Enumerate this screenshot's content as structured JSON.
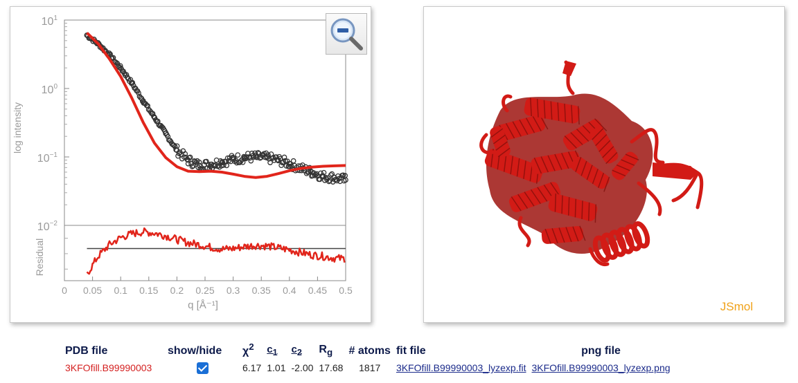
{
  "plot": {
    "ylabel": "log intensity",
    "residual_label": "Residual",
    "xlabel": "q [Å⁻¹]",
    "x_ticks": [
      "0",
      "0.05",
      "0.1",
      "0.15",
      "0.2",
      "0.25",
      "0.3",
      "0.35",
      "0.4",
      "0.45",
      "0.5"
    ],
    "y_ticks": [
      {
        "base": "10",
        "exp": "1"
      },
      {
        "base": "10",
        "exp": "0"
      },
      {
        "base": "10",
        "exp": "−1"
      },
      {
        "base": "10",
        "exp": "−2"
      }
    ],
    "zoom_button_icon": "zoom-out-icon"
  },
  "chart_data": {
    "type": "scatter",
    "x_axis": {
      "label": "q [Å⁻¹]",
      "range": [
        0,
        0.5
      ]
    },
    "y_axis": {
      "label": "log intensity",
      "scale": "log",
      "range": [
        0.01,
        10
      ]
    },
    "series": [
      {
        "kind": "points",
        "color": "#333333",
        "x": [
          0.04,
          0.06,
          0.08,
          0.1,
          0.12,
          0.14,
          0.16,
          0.18,
          0.2,
          0.22,
          0.24,
          0.26,
          0.28,
          0.3,
          0.32,
          0.34,
          0.36,
          0.38,
          0.4,
          0.42,
          0.44,
          0.46,
          0.48,
          0.5
        ],
        "y": [
          6.0,
          4.5,
          3.1,
          2.0,
          1.2,
          0.66,
          0.38,
          0.22,
          0.125,
          0.09,
          0.075,
          0.078,
          0.085,
          0.092,
          0.098,
          0.1,
          0.097,
          0.09,
          0.08,
          0.068,
          0.06,
          0.052,
          0.05,
          0.046
        ]
      },
      {
        "kind": "line",
        "color": "#e1251b",
        "x": [
          0.04,
          0.06,
          0.08,
          0.1,
          0.12,
          0.14,
          0.16,
          0.18,
          0.2,
          0.22,
          0.24,
          0.26,
          0.28,
          0.3,
          0.32,
          0.34,
          0.36,
          0.38,
          0.4,
          0.42,
          0.44,
          0.46,
          0.48,
          0.5
        ],
        "y": [
          6.5,
          4.5,
          2.7,
          1.5,
          0.72,
          0.32,
          0.16,
          0.098,
          0.072,
          0.062,
          0.061,
          0.062,
          0.06,
          0.056,
          0.052,
          0.05,
          0.052,
          0.057,
          0.063,
          0.068,
          0.071,
          0.073,
          0.074,
          0.075
        ]
      }
    ],
    "residual": {
      "label": "Residual",
      "color": "#e1251b",
      "x": [
        0.04,
        0.06,
        0.08,
        0.1,
        0.12,
        0.14,
        0.16,
        0.18,
        0.2,
        0.22,
        0.24,
        0.26,
        0.28,
        0.3,
        0.32,
        0.34,
        0.36,
        0.38,
        0.4,
        0.42,
        0.44,
        0.46,
        0.48,
        0.5
      ],
      "y": [
        -2.0,
        -0.6,
        0.3,
        0.85,
        1.15,
        1.3,
        1.2,
        1.0,
        0.7,
        0.45,
        0.3,
        0.1,
        -0.05,
        0.0,
        0.15,
        0.25,
        0.2,
        0.05,
        -0.1,
        -0.3,
        -0.5,
        -0.6,
        -0.75,
        -0.8
      ],
      "range": [
        -2.5,
        1.8
      ]
    },
    "grid": false
  },
  "viewer": {
    "logo": "JSmol"
  },
  "table": {
    "headers": {
      "pdb": "PDB file",
      "show": "show/hide",
      "chi": "χ",
      "chi_sup": "2",
      "c1": "c",
      "c1_sub": "1",
      "c2": "c",
      "c2_sub": "2",
      "rg": "R",
      "rg_sub": "g",
      "atoms": "# atoms",
      "fit": "fit file",
      "png": "png file"
    },
    "row": {
      "pdb": "3KFOfill.B99990003",
      "checked": true,
      "chi2": "6.17",
      "c1": "1.01",
      "c2": "-2.00",
      "rg": "17.68",
      "atoms": "1817",
      "fit_file": "3KFOfill.B99990003_lyzexp.fit",
      "png_file": "3KFOfill.B99990003_lyzexp.png"
    }
  },
  "colors": {
    "fit_line": "#e1251b",
    "data_points": "#333333",
    "protein": "#d21b16",
    "jsmol_logo": "#f0a21a"
  }
}
